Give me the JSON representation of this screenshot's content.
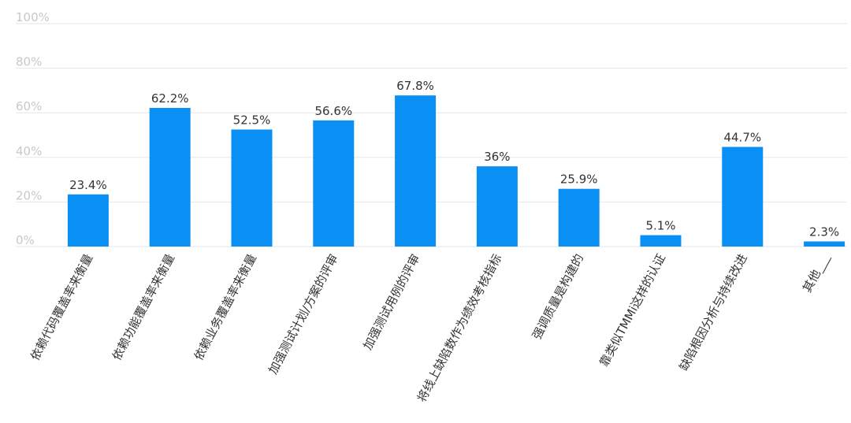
{
  "chart_data": {
    "type": "bar",
    "categories": [
      "依赖代码覆盖率来衡量",
      "依赖功能覆盖率来衡量",
      "依赖业务覆盖率来衡量",
      "加强测试计划/方案的评审",
      "加强测试用例的评审",
      "将线上缺陷数作为绩效考核指标",
      "强调质量是构建的",
      "靠类似TMMi这样的认证",
      "缺陷根因分析与持续改进",
      "其他___"
    ],
    "values": [
      23.4,
      62.2,
      52.5,
      56.6,
      67.8,
      36,
      25.9,
      5.1,
      44.7,
      2.3
    ],
    "value_labels": [
      "23.4%",
      "62.2%",
      "52.5%",
      "56.6%",
      "67.8%",
      "36%",
      "25.9%",
      "5.1%",
      "44.7%",
      "2.3%"
    ],
    "color": "#0a8ff5",
    "ylim": [
      0,
      100
    ],
    "yticks": [
      {
        "value": 0,
        "label": "0%"
      },
      {
        "value": 20,
        "label": "20%"
      },
      {
        "value": 40,
        "label": "40%"
      },
      {
        "value": 60,
        "label": "60%"
      },
      {
        "value": 80,
        "label": "80%"
      },
      {
        "value": 100,
        "label": "100%"
      }
    ],
    "grid": true
  }
}
